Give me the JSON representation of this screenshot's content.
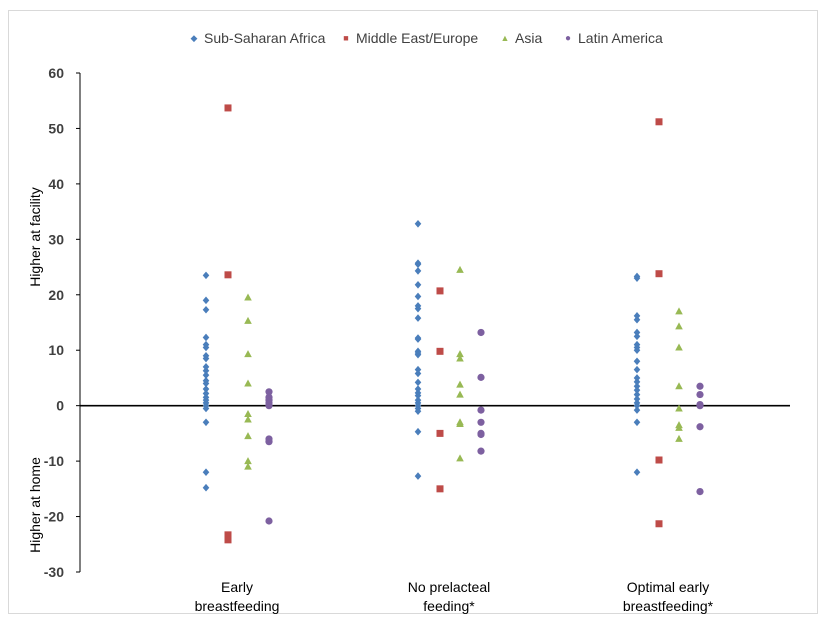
{
  "chart_data": {
    "type": "scatter",
    "categories": [
      "Early breastfeeding",
      "No prelacteal feeding*",
      "Optimal early breastfeeding*"
    ],
    "category_lines": [
      [
        "Early",
        "breastfeeding"
      ],
      [
        "No prelacteal",
        "feeding*"
      ],
      [
        "Optimal early",
        "breastfeeding*"
      ]
    ],
    "ylabel_top": "Higher at facility",
    "ylabel_bottom": "Higher at home",
    "ylim": [
      -30,
      60
    ],
    "yticks": [
      -30,
      -20,
      -10,
      0,
      10,
      20,
      30,
      40,
      50,
      60
    ],
    "legend_position": "top",
    "grid": false,
    "series": [
      {
        "name": "Sub-Saharan Africa",
        "color": "#4a7ebb",
        "marker": "diamond",
        "values": [
          [
            23.5,
            19,
            17.3,
            12.3,
            11,
            10.5,
            9,
            8.5,
            7,
            6.3,
            5.5,
            4.5,
            4,
            3,
            2.2,
            1.5,
            1,
            0.5,
            0,
            -0.5,
            -3,
            -12,
            -14.8
          ],
          [
            32.8,
            25.7,
            25.5,
            24.3,
            21.8,
            19.7,
            18,
            17.5,
            15.8,
            12.2,
            12,
            9.8,
            9.5,
            9.2,
            6.5,
            5.8,
            4.2,
            3,
            2.3,
            1.8,
            1,
            0.5,
            0,
            -0.5,
            -1,
            -4.7,
            -12.7
          ],
          [
            23.3,
            23,
            16.2,
            15.5,
            13.2,
            12.5,
            11,
            10.5,
            10,
            8,
            6.5,
            5,
            4.3,
            3.5,
            2.8,
            2,
            1.2,
            0.5,
            0,
            -0.8,
            -3,
            -12
          ]
        ]
      },
      {
        "name": "Middle East/Europe",
        "color": "#be4b48",
        "marker": "square",
        "values": [
          [
            53.7,
            23.6,
            -23.3,
            -24.2
          ],
          [
            20.7,
            9.8,
            -5,
            -15
          ],
          [
            51.2,
            23.8,
            -9.8,
            -21.3
          ]
        ]
      },
      {
        "name": "Asia",
        "color": "#98b954",
        "marker": "triangle",
        "values": [
          [
            19.5,
            15.3,
            9.3,
            4,
            -1.5,
            -2.5,
            -5.5,
            -10,
            -11
          ],
          [
            24.5,
            9.3,
            8.5,
            3.8,
            2,
            -3,
            -3.3,
            -9.5
          ],
          [
            17,
            14.3,
            10.5,
            3.5,
            -0.5,
            -3.5,
            -4,
            -6
          ]
        ]
      },
      {
        "name": "Latin America",
        "color": "#7d60a0",
        "marker": "circle",
        "values": [
          [
            2.5,
            1.5,
            1,
            0.5,
            0,
            -6,
            -6.5,
            -20.8
          ],
          [
            13.2,
            5.1,
            -0.8,
            -3,
            -5,
            -5.2,
            -8.2
          ],
          [
            3.5,
            2,
            0.2,
            0,
            -3.8,
            -15.5
          ]
        ]
      }
    ]
  }
}
